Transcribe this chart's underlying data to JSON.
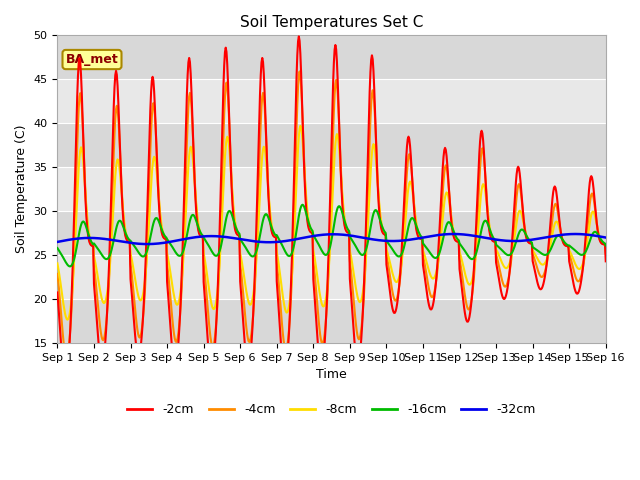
{
  "title": "Soil Temperatures Set C",
  "xlabel": "Time",
  "ylabel": "Soil Temperature (C)",
  "ylim": [
    15,
    50
  ],
  "xlim": [
    0,
    15
  ],
  "annotation_text": "BA_met",
  "plot_bg_color": "#dcdcdc",
  "tick_labels": [
    "Sep 1",
    "Sep 2",
    "Sep 3",
    "Sep 4",
    "Sep 5",
    "Sep 6",
    "Sep 7",
    "Sep 8",
    "Sep 9",
    "Sep 10",
    "Sep 11",
    "Sep 12",
    "Sep 13",
    "Sep 14",
    "Sep 15",
    "Sep 16"
  ],
  "series_colors": [
    "#ff0000",
    "#ff8c00",
    "#ffdd00",
    "#00bb00",
    "#0000ee"
  ],
  "series_labels": [
    "-2cm",
    "-4cm",
    "-8cm",
    "-16cm",
    "-32cm"
  ],
  "series_linewidths": [
    1.5,
    1.5,
    1.5,
    1.5,
    1.8
  ],
  "yticks": [
    15,
    20,
    25,
    30,
    35,
    40,
    45,
    50
  ],
  "band_colors": [
    "#d8d8d8",
    "#e8e8e8"
  ],
  "band_ranges": [
    [
      15,
      20
    ],
    [
      20,
      25
    ],
    [
      25,
      30
    ],
    [
      30,
      35
    ],
    [
      35,
      40
    ],
    [
      40,
      45
    ],
    [
      45,
      50
    ]
  ]
}
